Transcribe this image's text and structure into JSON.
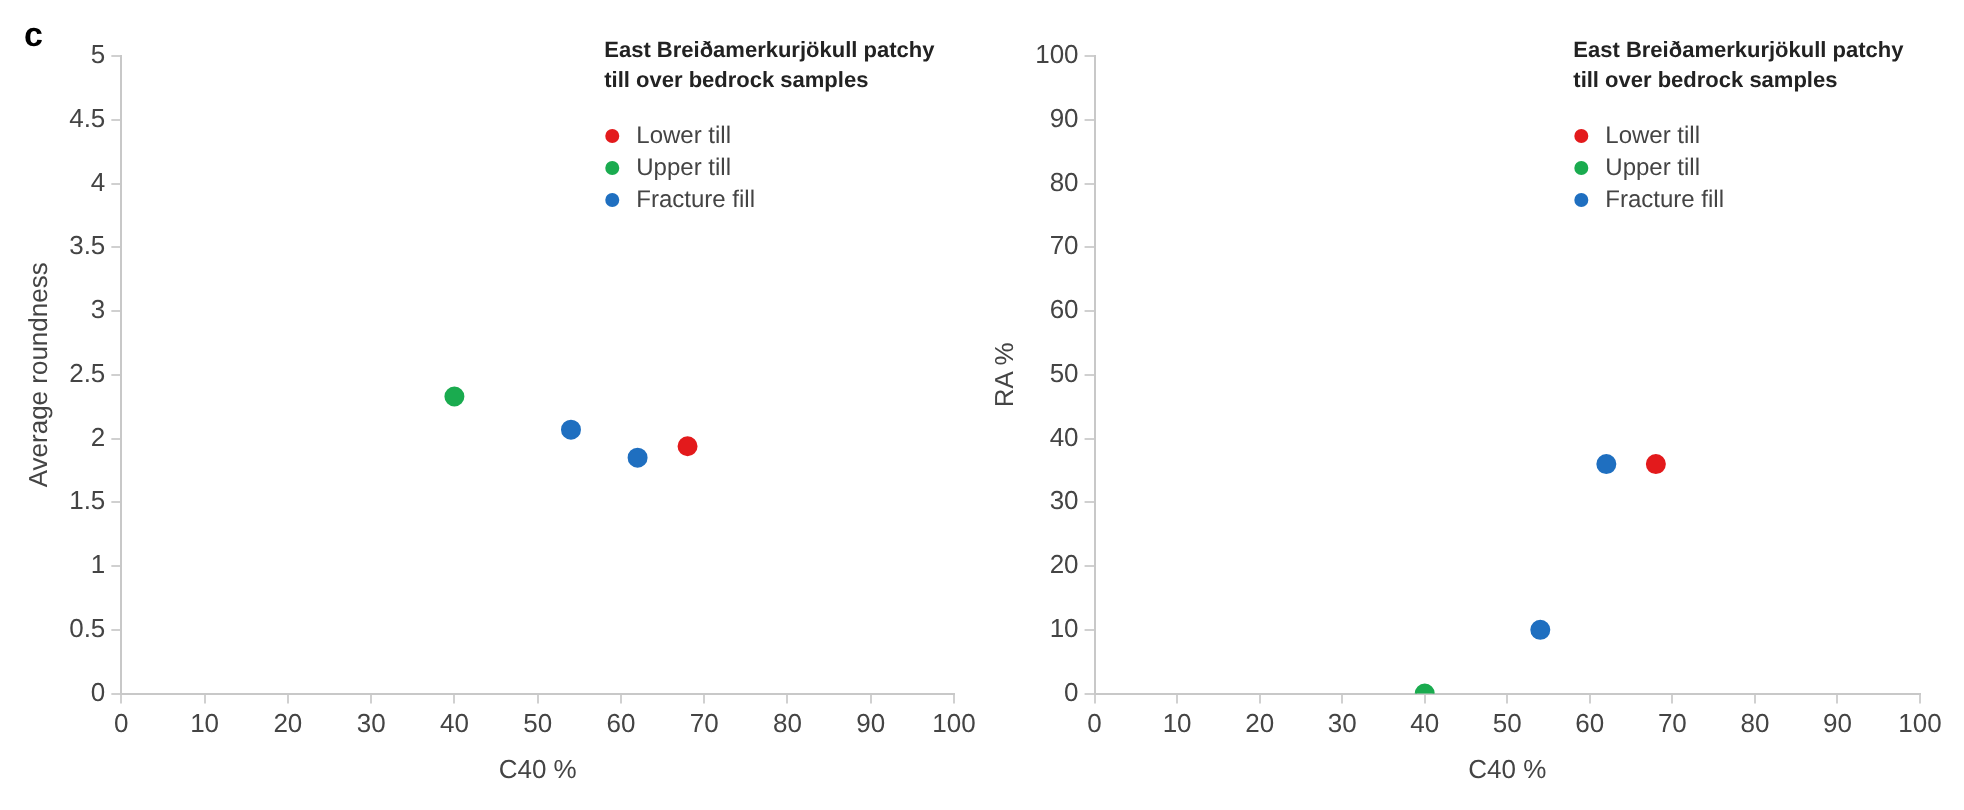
{
  "chart_data": [
    {
      "type": "scatter",
      "annotations": [
        "c"
      ],
      "xlabel": "C40 %",
      "ylabel": "Average roundness",
      "legend_title": "East Breiðamerkurjökull patchy till over bedrock samples",
      "legend": "top right",
      "marker": "circle",
      "grid": false,
      "xlim": [
        0,
        100
      ],
      "xticks": [
        0,
        10,
        20,
        30,
        40,
        50,
        60,
        70,
        80,
        90,
        100
      ],
      "ylim": [
        0,
        5
      ],
      "yticks": [
        0,
        0.5,
        1,
        1.5,
        2,
        2.5,
        3,
        3.5,
        4,
        4.5,
        5
      ],
      "series": [
        {
          "name": "Lower till",
          "color": "#e31a1c",
          "x": [
            68
          ],
          "values": [
            1.94
          ]
        },
        {
          "name": "Upper till",
          "color": "#1aab4f",
          "x": [
            40
          ],
          "values": [
            2.33
          ]
        },
        {
          "name": "Fracture fill",
          "color": "#1f6fc0",
          "x": [
            54,
            62
          ],
          "values": [
            2.07,
            1.85
          ]
        }
      ]
    },
    {
      "type": "scatter",
      "xlabel": "C40 %",
      "ylabel": "RA %",
      "legend_title": "East Breiðamerkurjökull patchy till over bedrock samples",
      "legend": "top right",
      "marker": "circle",
      "grid": false,
      "xlim": [
        0,
        100
      ],
      "xticks": [
        0,
        10,
        20,
        30,
        40,
        50,
        60,
        70,
        80,
        90,
        100
      ],
      "ylim": [
        0,
        100
      ],
      "yticks": [
        0,
        10,
        20,
        30,
        40,
        50,
        60,
        70,
        80,
        90,
        100
      ],
      "series": [
        {
          "name": "Lower till",
          "color": "#e31a1c",
          "x": [
            68
          ],
          "values": [
            36
          ]
        },
        {
          "name": "Upper till",
          "color": "#1aab4f",
          "x": [
            40
          ],
          "values": [
            0
          ]
        },
        {
          "name": "Fracture fill",
          "color": "#1f6fc0",
          "x": [
            54,
            62
          ],
          "values": [
            10,
            36
          ]
        }
      ]
    }
  ]
}
